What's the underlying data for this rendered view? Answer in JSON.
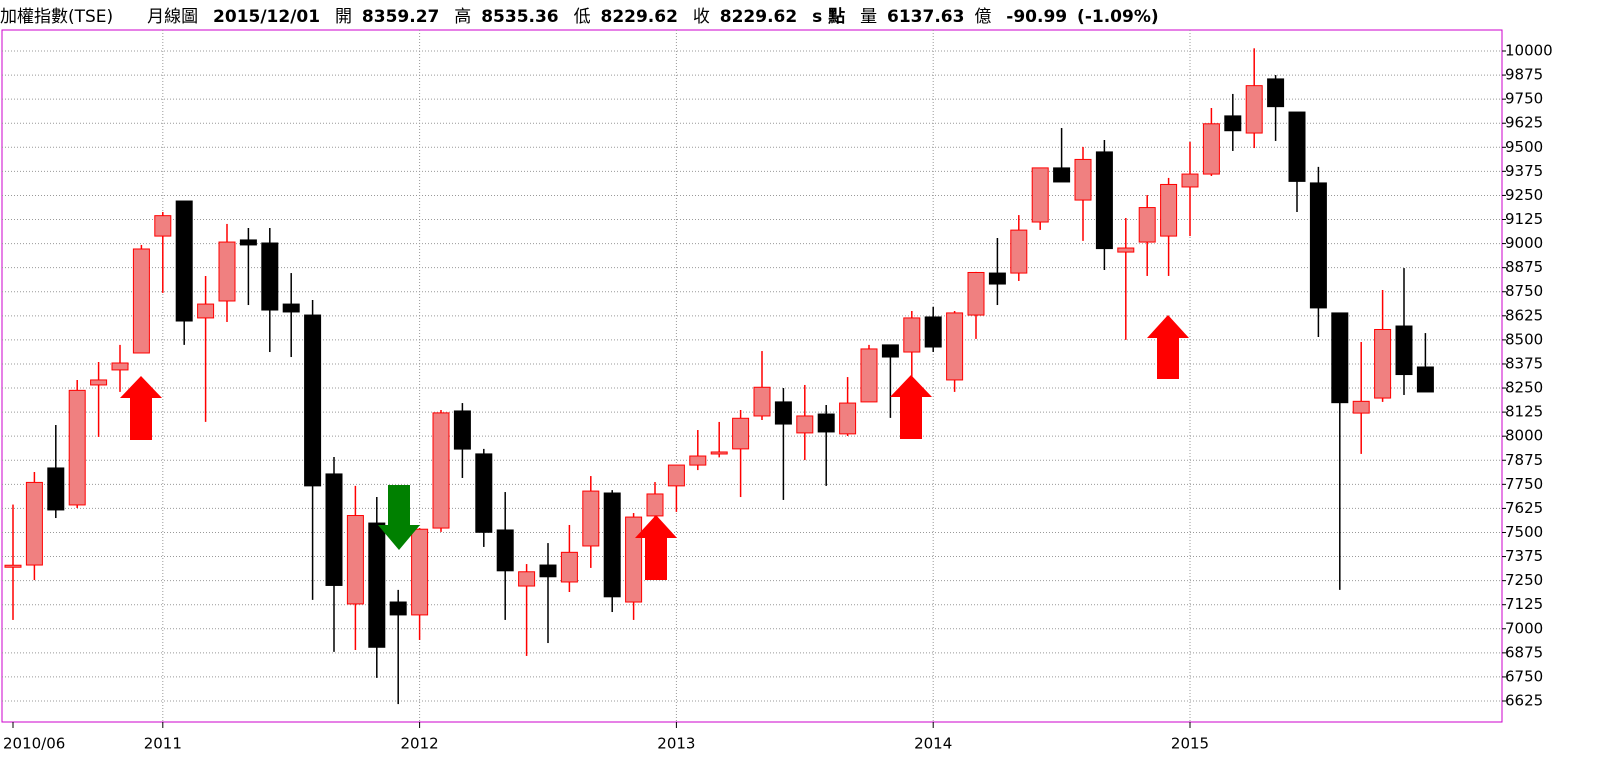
{
  "header": {
    "name": "加權指數(TSE)",
    "period": "月線圖",
    "date": "2015/12/01",
    "open_label": "開",
    "high_label": "高",
    "low_label": "低",
    "close_label": "收",
    "unit": "s 點",
    "volume_label": "量",
    "volume": "6137.63",
    "volume_unit": "億",
    "change": "-90.99",
    "change_pct": "(-1.09%)"
  },
  "chart_data": {
    "type": "candlestick",
    "categories": [
      "2010/06",
      null,
      null,
      null,
      null,
      null,
      null,
      "2011",
      null,
      null,
      null,
      null,
      null,
      null,
      null,
      null,
      null,
      null,
      null,
      "2012",
      null,
      null,
      null,
      null,
      null,
      null,
      null,
      null,
      null,
      null,
      null,
      "2013",
      null,
      null,
      null,
      null,
      null,
      null,
      null,
      null,
      null,
      null,
      null,
      "2014",
      null,
      null,
      null,
      null,
      null,
      null,
      null,
      null,
      null,
      null,
      null,
      "2015",
      null,
      null,
      null,
      null,
      null,
      null,
      null,
      null,
      null,
      null,
      null
    ],
    "open": [
      7325,
      7331,
      7835,
      7643,
      8266,
      8344,
      8432,
      9039,
      9221,
      8614,
      8702,
      9019,
      9003,
      8686,
      8629,
      7804,
      7129,
      7549,
      7139,
      7072,
      7523,
      8131,
      7908,
      7513,
      7222,
      7331,
      7243,
      7430,
      7705,
      7139,
      7586,
      7742,
      7850,
      7908,
      7934,
      8105,
      8178,
      8017,
      8115,
      8012,
      8178,
      8474,
      8437,
      8619,
      8292,
      8629,
      8847,
      8847,
      9112,
      9393,
      9226,
      9476,
      8956,
      9008,
      9039,
      9294,
      9361,
      9663,
      9574,
      9855,
      9683,
      9315,
      8640,
      8120,
      8198,
      8572,
      8359.27
    ],
    "high": [
      7645,
      7814,
      8058,
      8292,
      8385,
      8474,
      8993,
      9164,
      9221,
      8832,
      9102,
      9081,
      9081,
      8847,
      8707,
      7892,
      7742,
      7684,
      7202,
      7523,
      8136,
      8172,
      7934,
      7710,
      7336,
      7445,
      7539,
      7793,
      7720,
      7601,
      7762,
      7850,
      8032,
      8074,
      8136,
      8442,
      8250,
      8266,
      8162,
      8307,
      8474,
      8474,
      8650,
      8671,
      8650,
      8853,
      9029,
      9148,
      9393,
      9600,
      9502,
      9538,
      9133,
      9252,
      9341,
      9528,
      9704,
      9777,
      10014,
      9875,
      9683,
      9398,
      8640,
      8489,
      8759,
      8873,
      8535.36
    ],
    "low": [
      7046,
      7253,
      7575,
      7627,
      7996,
      8230,
      8432,
      8744,
      8474,
      8074,
      8593,
      8681,
      8437,
      8411,
      7150,
      6880,
      6890,
      6745,
      6609,
      6942,
      7503,
      7783,
      7425,
      7046,
      6859,
      6926,
      7191,
      7316,
      7087,
      7046,
      7523,
      7607,
      7824,
      7890,
      7684,
      8084,
      7669,
      7876,
      7742,
      8001,
      8178,
      8095,
      8292,
      8437,
      8230,
      8505,
      8681,
      8806,
      9071,
      9320,
      9014,
      8863,
      8500,
      8832,
      8832,
      9039,
      9351,
      9481,
      9496,
      9533,
      9164,
      8515,
      7202,
      7908,
      8178,
      8214,
      8229.62
    ],
    "close": [
      7330,
      7760,
      7617,
      8238,
      8292,
      8380,
      8972,
      9145,
      8598,
      8686,
      9008,
      8993,
      8655,
      8645,
      7742,
      7225,
      7588,
      6904,
      7072,
      7517,
      8121,
      7933,
      7501,
      7301,
      7296,
      7270,
      7397,
      7715,
      7166,
      7580,
      7700,
      7850,
      7897,
      7918,
      8093,
      8254,
      8063,
      8105,
      8022,
      8172,
      8453,
      8411,
      8614,
      8463,
      8640,
      8850,
      8790,
      9070,
      9393,
      9320,
      9437,
      8974,
      8977,
      9187,
      9307,
      9361,
      9622,
      9586,
      9820,
      9711,
      9323,
      8666,
      8174,
      8181,
      8554,
      8320,
      8229.62
    ],
    "up_color": "#f08080",
    "up_line": "#ff0000",
    "down_color": "#000000",
    "ylim": [
      6516,
      10109
    ],
    "yticks": [
      6625,
      6750,
      6875,
      7000,
      7125,
      7250,
      7375,
      7500,
      7625,
      7750,
      7875,
      8000,
      8125,
      8250,
      8375,
      8500,
      8625,
      8750,
      8875,
      9000,
      9125,
      9250,
      9375,
      9500,
      9625,
      9750,
      9875,
      10000
    ],
    "grid": true
  }
}
